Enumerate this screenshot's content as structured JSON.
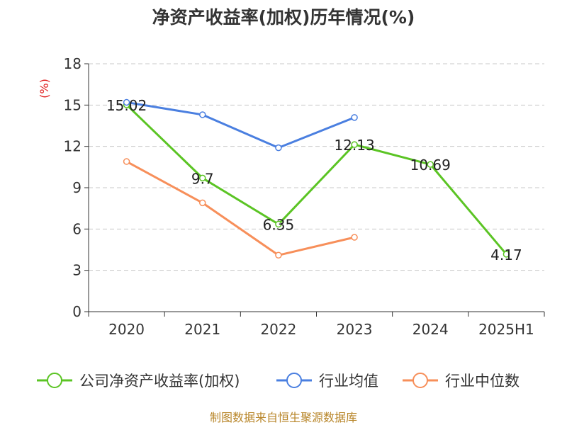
{
  "chart_data": {
    "type": "line",
    "title": "净资产收益率(加权)历年情况(%)",
    "ylabel": "(%)",
    "xlabel": "",
    "categories": [
      "2020",
      "2021",
      "2022",
      "2023",
      "2024",
      "2025H1"
    ],
    "ylim": [
      0,
      18
    ],
    "yticks": [
      0,
      3,
      6,
      9,
      12,
      15,
      18
    ],
    "grid": true,
    "legend_position": "bottom",
    "series": [
      {
        "name": "公司净资产收益率(加权)",
        "color": "#5bc424",
        "values": [
          15.02,
          9.7,
          6.35,
          12.13,
          10.69,
          4.17
        ],
        "labels": [
          "15.02",
          "9.7",
          "6.35",
          "12.13",
          "10.69",
          "4.17"
        ]
      },
      {
        "name": "行业均值",
        "color": "#4a7fe0",
        "values": [
          15.2,
          14.3,
          11.9,
          14.1,
          null,
          null
        ]
      },
      {
        "name": "行业中位数",
        "color": "#f78f5a",
        "values": [
          10.9,
          7.9,
          4.1,
          5.4,
          null,
          null
        ]
      }
    ]
  },
  "source": "制图数据来自恒生聚源数据库"
}
